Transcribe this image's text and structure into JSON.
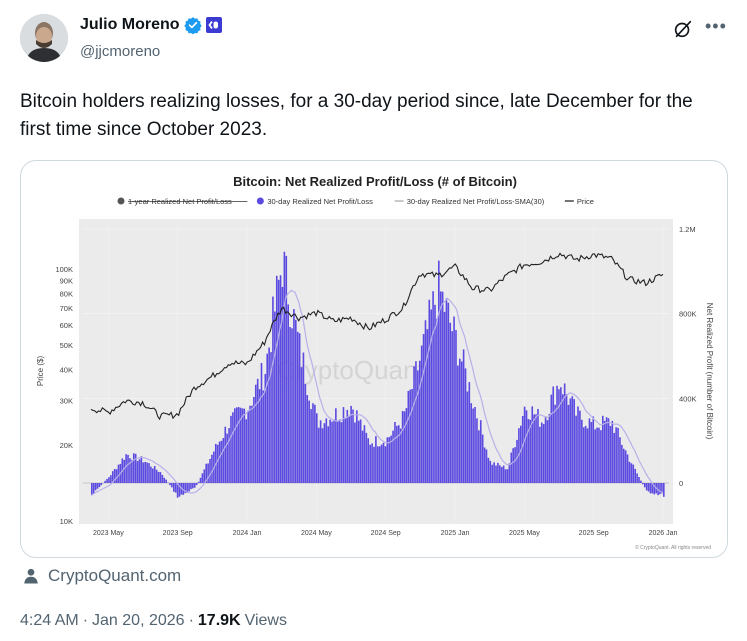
{
  "author": {
    "name": "Julio Moreno",
    "handle": "@jjcmoreno",
    "verified_color": "#1d9bf0",
    "affiliate_badge_color": "#3b3bd4"
  },
  "tweet": {
    "text": "Bitcoin holders realizing losses, for a 30-day period since, late December for the first time since October 2023.",
    "source_label": "CryptoQuant.com",
    "time": "4:24 AM",
    "separator": "·",
    "date": "Jan 20, 2026",
    "views_count": "17.9K",
    "views_label": "Views"
  },
  "icons": {
    "grok": "grok-icon",
    "more": "more-icon",
    "source": "person-icon"
  },
  "chart_data": {
    "type": "bar",
    "title": "Bitcoin: Net Realized Profit/Loss (# of Bitcoin)",
    "legend": [
      {
        "name": "1-year Realized Net Profit/Loss",
        "color": "#555555",
        "struck": true
      },
      {
        "name": "30-day Realized Net Profit/Loss",
        "color": "#5b4ae0"
      },
      {
        "name": "30-day Realized Net Profit/Loss-SMA(30)",
        "color": "#aaaaaa"
      },
      {
        "name": "Price",
        "color": "#222222"
      }
    ],
    "legend_placement": "top",
    "y_left_label": "Price ($)",
    "y_left_ticks": [
      "100K",
      "90K",
      "80K",
      "70K",
      "60K",
      "50K",
      "40K",
      "30K",
      "20K",
      "10K"
    ],
    "y_left_scale": "log",
    "y_right_label": "Net Realized Profit (number of Bitcoin)",
    "y_right_ticks": [
      "1.2M",
      "800K",
      "400K",
      "0"
    ],
    "x_ticks": [
      "2023 May",
      "2023 Sep",
      "2024 Jan",
      "2024 May",
      "2024 Sep",
      "2025 Jan",
      "2025 May",
      "2025 Sep",
      "2026 Jan"
    ],
    "watermark": "CryptoQuant",
    "copyright": "© CryptoQuant. All rights reserved",
    "colors": {
      "bars": "#5b4ae0",
      "sma": "#b8b0e8",
      "price": "#222222",
      "plot_bg": "#ebebeb"
    },
    "profit_series": [
      {
        "t": "2023 Apr",
        "v": -60000
      },
      {
        "t": "2023 May",
        "v": 30000
      },
      {
        "t": "2023 Jun",
        "v": 140000
      },
      {
        "t": "2023 Jul",
        "v": 110000
      },
      {
        "t": "2023 Aug",
        "v": 50000
      },
      {
        "t": "2023 Sep",
        "v": -70000
      },
      {
        "t": "2023 Oct",
        "v": -20000
      },
      {
        "t": "2023 Nov",
        "v": 150000
      },
      {
        "t": "2023 Dec",
        "v": 300000
      },
      {
        "t": "2024 Jan",
        "v": 370000
      },
      {
        "t": "2024 Feb",
        "v": 550000
      },
      {
        "t": "2024 Mar",
        "v": 1080000
      },
      {
        "t": "2024 Apr",
        "v": 650000
      },
      {
        "t": "2024 May",
        "v": 300000
      },
      {
        "t": "2024 Jun",
        "v": 330000
      },
      {
        "t": "2024 Jul",
        "v": 380000
      },
      {
        "t": "2024 Aug",
        "v": 200000
      },
      {
        "t": "2024 Sep",
        "v": 210000
      },
      {
        "t": "2024 Oct",
        "v": 320000
      },
      {
        "t": "2024 Nov",
        "v": 620000
      },
      {
        "t": "2024 Dec",
        "v": 950000
      },
      {
        "t": "2025 Jan",
        "v": 700000
      },
      {
        "t": "2025 Feb",
        "v": 400000
      },
      {
        "t": "2025 Mar",
        "v": 100000
      },
      {
        "t": "2025 Apr",
        "v": 70000
      },
      {
        "t": "2025 May",
        "v": 380000
      },
      {
        "t": "2025 Jun",
        "v": 300000
      },
      {
        "t": "2025 Jul",
        "v": 500000
      },
      {
        "t": "2025 Aug",
        "v": 330000
      },
      {
        "t": "2025 Sep",
        "v": 280000
      },
      {
        "t": "2025 Oct",
        "v": 300000
      },
      {
        "t": "2025 Nov",
        "v": 120000
      },
      {
        "t": "2025 Dec",
        "v": -40000
      },
      {
        "t": "2026 Jan",
        "v": -60000
      }
    ],
    "price_series": [
      {
        "t": "2023 Apr",
        "v": 28000
      },
      {
        "t": "2023 May",
        "v": 27000
      },
      {
        "t": "2023 Jun",
        "v": 30000
      },
      {
        "t": "2023 Jul",
        "v": 29500
      },
      {
        "t": "2023 Aug",
        "v": 26000
      },
      {
        "t": "2023 Sep",
        "v": 26500
      },
      {
        "t": "2023 Oct",
        "v": 34000
      },
      {
        "t": "2023 Nov",
        "v": 37500
      },
      {
        "t": "2023 Dec",
        "v": 42500
      },
      {
        "t": "2024 Jan",
        "v": 42000
      },
      {
        "t": "2024 Feb",
        "v": 51000
      },
      {
        "t": "2024 Mar",
        "v": 70000
      },
      {
        "t": "2024 Apr",
        "v": 64000
      },
      {
        "t": "2024 May",
        "v": 67000
      },
      {
        "t": "2024 Jun",
        "v": 62000
      },
      {
        "t": "2024 Jul",
        "v": 64000
      },
      {
        "t": "2024 Aug",
        "v": 58000
      },
      {
        "t": "2024 Sep",
        "v": 63000
      },
      {
        "t": "2024 Oct",
        "v": 70000
      },
      {
        "t": "2024 Nov",
        "v": 96000
      },
      {
        "t": "2024 Dec",
        "v": 94000
      },
      {
        "t": "2025 Jan",
        "v": 102000
      },
      {
        "t": "2025 Feb",
        "v": 84000
      },
      {
        "t": "2025 Mar",
        "v": 82000
      },
      {
        "t": "2025 Apr",
        "v": 94000
      },
      {
        "t": "2025 May",
        "v": 104000
      },
      {
        "t": "2025 Jun",
        "v": 107000
      },
      {
        "t": "2025 Jul",
        "v": 115000
      },
      {
        "t": "2025 Aug",
        "v": 109000
      },
      {
        "t": "2025 Sep",
        "v": 114000
      },
      {
        "t": "2025 Oct",
        "v": 110000
      },
      {
        "t": "2025 Nov",
        "v": 91000
      },
      {
        "t": "2025 Dec",
        "v": 88000
      },
      {
        "t": "2026 Jan",
        "v": 95000
      }
    ]
  }
}
